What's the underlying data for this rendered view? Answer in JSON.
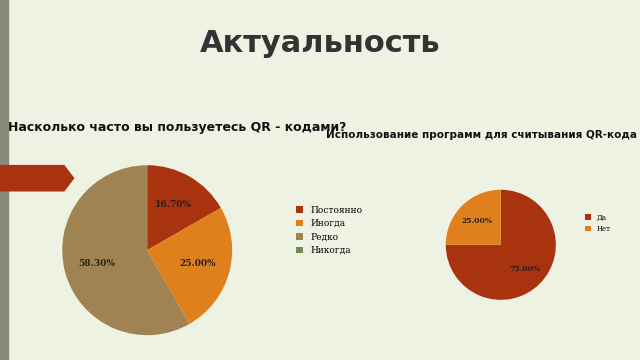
{
  "title": "Актуальность",
  "chart_data": [
    {
      "type": "pie",
      "title": "Насколько часто вы пользуетесь QR - кодами?",
      "categories": [
        "Постоянно",
        "Иногда",
        "Редко",
        "Никогда"
      ],
      "values": [
        16.7,
        25.0,
        58.3,
        0
      ],
      "value_labels": [
        "16.70%",
        "25.00%",
        "58.30%",
        null
      ],
      "colors": [
        "#a9320f",
        "#e0801c",
        "#a08352",
        "#76894a"
      ],
      "data_labels": true,
      "legend": "right"
    },
    {
      "type": "pie",
      "title": "Использование программ для считывания QR-кода",
      "categories": [
        "Да",
        "Нет"
      ],
      "values": [
        75.0,
        25.0
      ],
      "value_labels": [
        "75.00%",
        "25.00%"
      ],
      "colors": [
        "#a9320f",
        "#e0801c"
      ],
      "data_labels": true,
      "legend": "right"
    }
  ]
}
